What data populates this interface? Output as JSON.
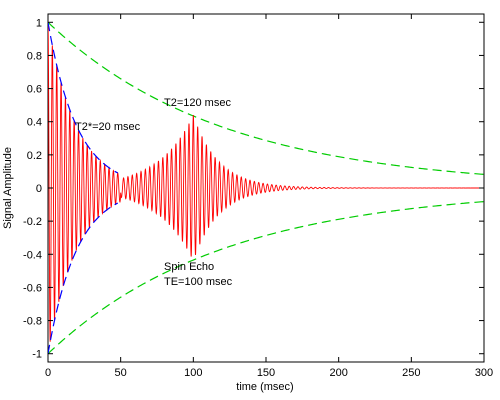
{
  "chart_data": {
    "type": "line",
    "xlabel": "time (msec)",
    "ylabel": "Signal Amplitude",
    "xlim": [
      0,
      300
    ],
    "ylim": [
      -1.05,
      1.05
    ],
    "x_ticks": [
      0,
      50,
      100,
      150,
      200,
      250,
      300
    ],
    "y_ticks": [
      -1,
      -0.8,
      -0.6,
      -0.4,
      -0.2,
      0,
      0.2,
      0.4,
      0.6,
      0.8,
      1
    ],
    "x_tick_labels": [
      "0",
      "50",
      "100",
      "150",
      "200",
      "250",
      "300"
    ],
    "y_tick_labels": [
      "-1",
      "-0.8",
      "-0.6",
      "-0.4",
      "-0.2",
      "0",
      "0.2",
      "0.4",
      "0.6",
      "0.8",
      "1"
    ],
    "grid": false,
    "series": [
      {
        "kind": "T2 decay envelope",
        "color": "#00cc00",
        "style": "dashed",
        "time_constant_msec": 120,
        "x_range": [
          0,
          300
        ],
        "x": [
          0,
          50,
          100,
          150,
          200,
          250,
          300
        ],
        "y_upper": [
          1.0,
          0.659,
          0.435,
          0.287,
          0.189,
          0.125,
          0.082
        ]
      },
      {
        "kind": "T2* decay envelope",
        "color": "#0000ff",
        "style": "dashed",
        "time_constant_msec": 20,
        "x_range": [
          0,
          48
        ],
        "x": [
          0,
          10,
          20,
          30,
          40,
          48
        ],
        "y_upper": [
          1.0,
          0.607,
          0.368,
          0.223,
          0.135,
          0.091
        ]
      },
      {
        "kind": "signal",
        "color": "#ff0000",
        "style": "solid",
        "oscillation_period_msec": 3.0,
        "echo_center_msec": 100,
        "echo_peak_amplitude": 0.42,
        "x_range": [
          0,
          300
        ]
      }
    ],
    "annotations": [
      {
        "text": "T2=120 msec",
        "x": 80,
        "y": 0.55
      },
      {
        "text": "T2*=20 msec",
        "x": 18,
        "y": 0.38
      },
      {
        "text": "Spin Echo",
        "x": 80,
        "y": -0.52
      },
      {
        "text": "TE=100 msec",
        "x": 80,
        "y": -0.62
      }
    ]
  },
  "colors": {
    "t2_envelope": "#00cc00",
    "t2star_envelope": "#0000ff",
    "signal": "#ff0000",
    "axes": "#000000"
  }
}
